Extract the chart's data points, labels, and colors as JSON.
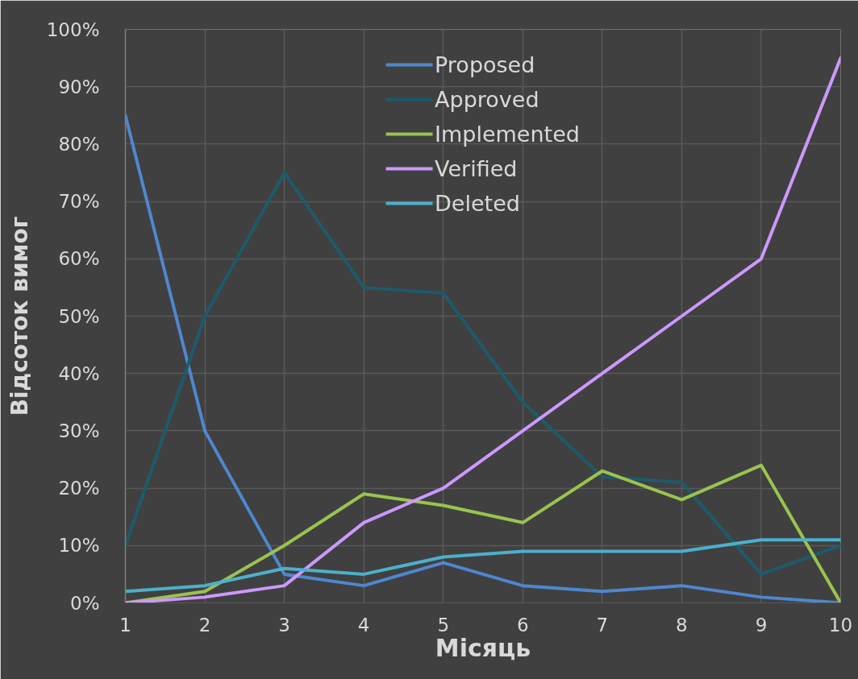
{
  "chart_data": {
    "type": "line",
    "xlabel": "Місяць",
    "ylabel": "Відсоток вимог",
    "x": [
      1,
      2,
      3,
      4,
      5,
      6,
      7,
      8,
      9,
      10
    ],
    "xlim": [
      1,
      10
    ],
    "xticks": [
      1,
      2,
      3,
      4,
      5,
      6,
      7,
      8,
      9,
      10
    ],
    "ylim": [
      0,
      100
    ],
    "yticks": [
      {
        "value": 0,
        "label": "0%"
      },
      {
        "value": 10,
        "label": "10%"
      },
      {
        "value": 20,
        "label": "20%"
      },
      {
        "value": 30,
        "label": "30%"
      },
      {
        "value": 40,
        "label": "40%"
      },
      {
        "value": 50,
        "label": "50%"
      },
      {
        "value": 60,
        "label": "60%"
      },
      {
        "value": 70,
        "label": "70%"
      },
      {
        "value": 80,
        "label": "80%"
      },
      {
        "value": 90,
        "label": "90%"
      },
      {
        "value": 100,
        "label": "100%"
      }
    ],
    "grid": true,
    "legend": "top",
    "line_style": "solid",
    "series": [
      {
        "name": "Proposed",
        "color": "#4f87cf",
        "values": [
          85,
          30,
          5,
          3,
          7,
          3,
          2,
          3,
          1,
          0
        ]
      },
      {
        "name": "Approved",
        "color": "#1d5b6b",
        "values": [
          10,
          50,
          75,
          55,
          54,
          35,
          22,
          21,
          5,
          10
        ]
      },
      {
        "name": "Implemented",
        "color": "#9bc34f",
        "values": [
          0,
          2,
          10,
          19,
          17,
          14,
          23,
          18,
          24,
          0
        ]
      },
      {
        "name": "Verified",
        "color": "#cc99ff",
        "values": [
          0,
          1,
          3,
          14,
          20,
          30,
          40,
          50,
          60,
          95
        ]
      },
      {
        "name": "Deleted",
        "color": "#4bb0cc",
        "values": [
          2,
          3,
          6,
          5,
          8,
          9,
          9,
          9,
          11,
          11
        ]
      }
    ]
  }
}
